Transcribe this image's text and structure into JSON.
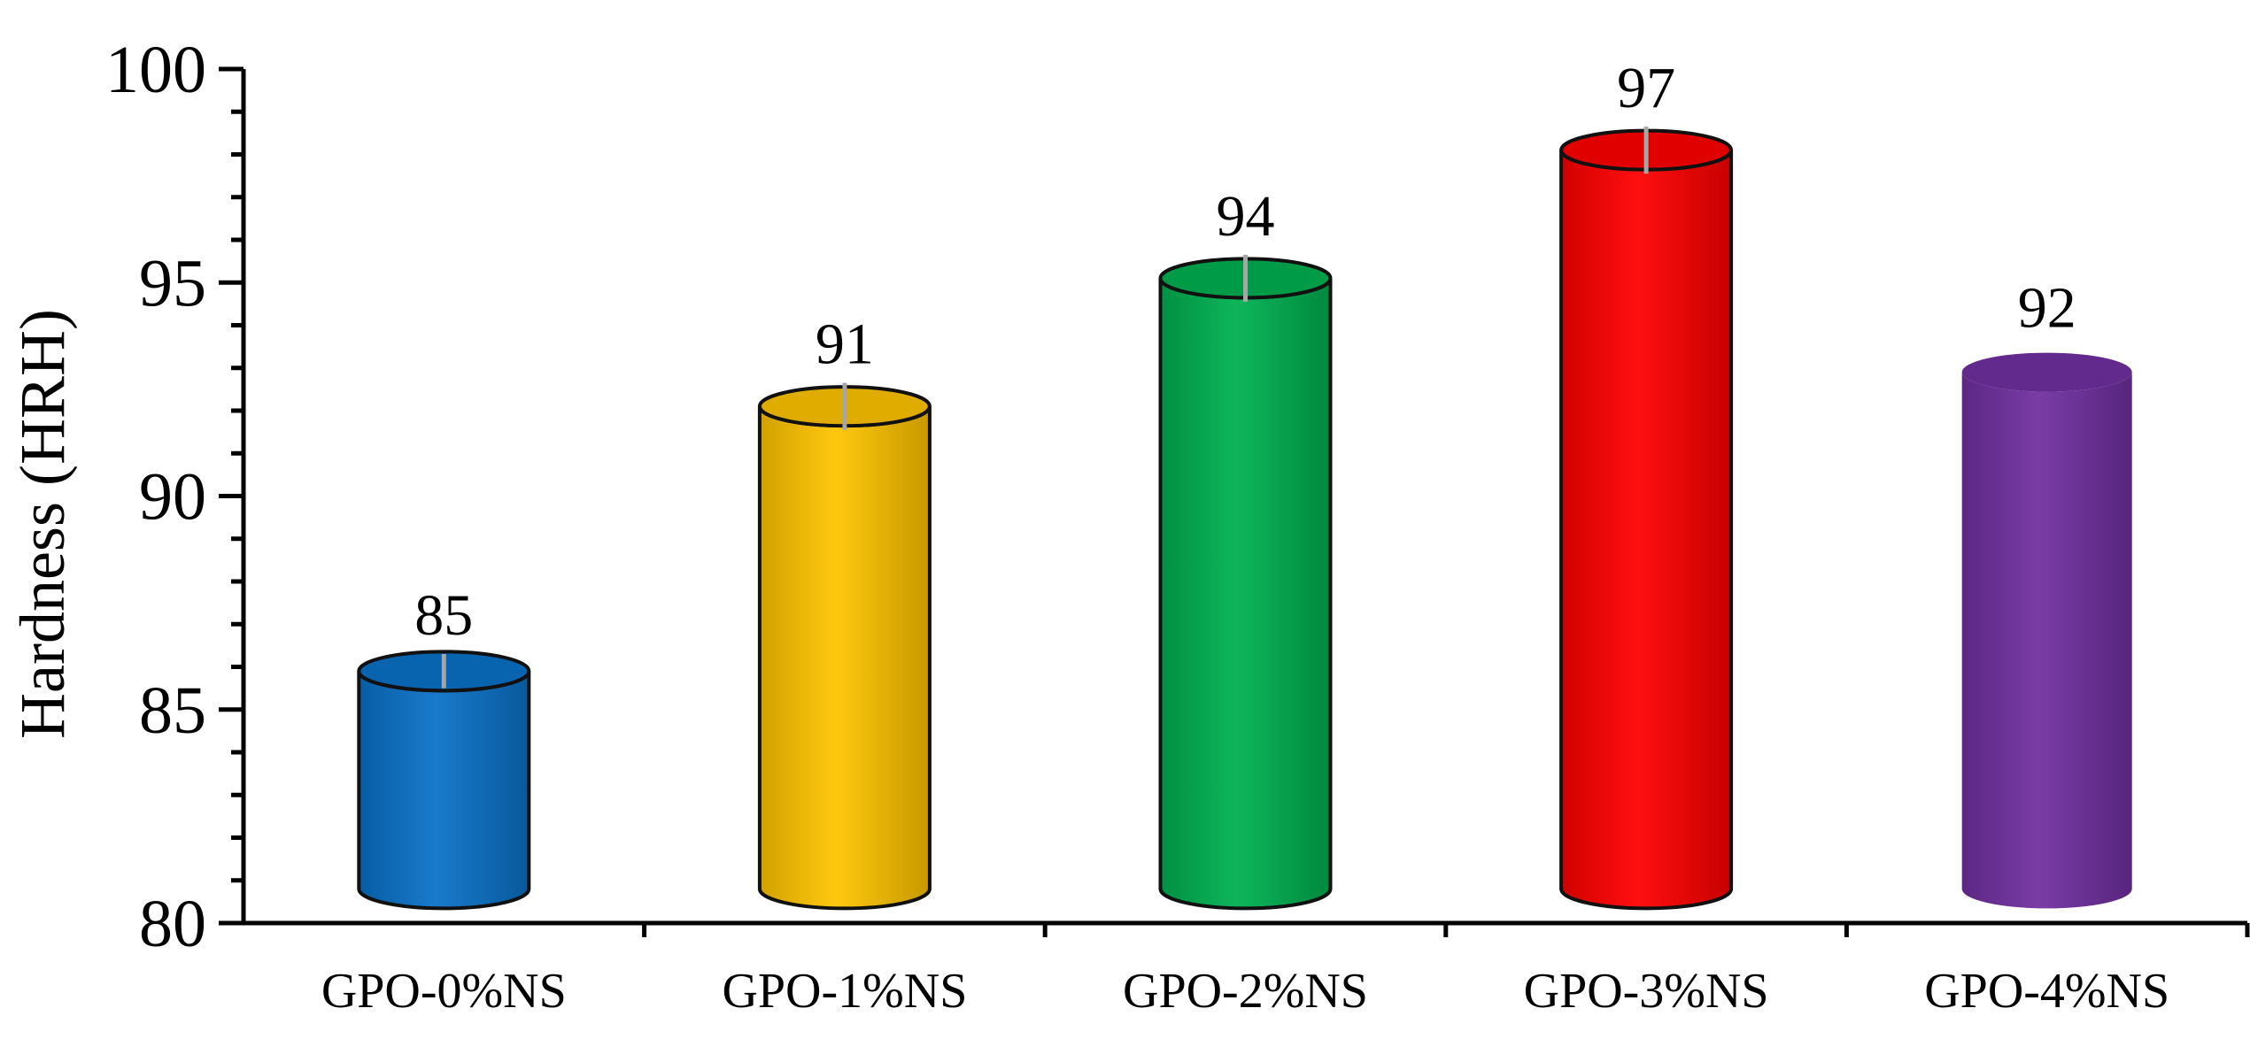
{
  "chart_data": {
    "type": "bar",
    "style": "3d-cylinder",
    "ylabel": "Hardness (HRH)",
    "ylim": [
      80,
      100
    ],
    "yticks": [
      80,
      85,
      90,
      95,
      100
    ],
    "categories": [
      "GPO-0%NS",
      "GPO-1%NS",
      "GPO-2%NS",
      "GPO-3%NS",
      "GPO-4%NS"
    ],
    "values": [
      85,
      91,
      94,
      97,
      92
    ],
    "bar_tops": [
      85.9,
      92.1,
      95.1,
      98.1,
      92.9
    ],
    "errors": [
      0.8,
      1.1,
      1.1,
      1.1,
      0
    ],
    "colors": [
      "#0a72c8",
      "#ffc400",
      "#00b050",
      "#ff0000",
      "#7030a0"
    ],
    "value_labels": [
      "85",
      "91",
      "94",
      "97",
      "92"
    ],
    "legend": "none",
    "grid": false
  }
}
